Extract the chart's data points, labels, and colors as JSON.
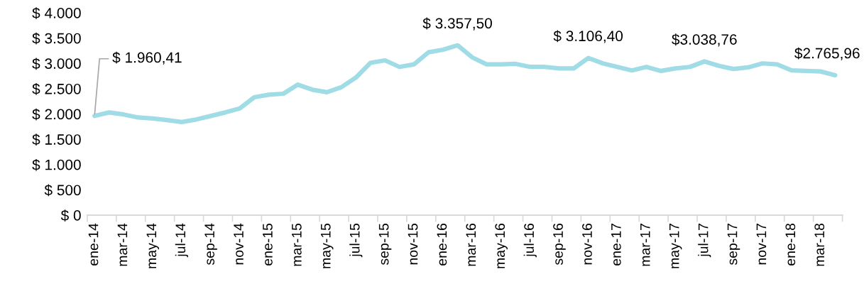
{
  "chart_data": {
    "type": "line",
    "categories": [
      "ene-14",
      null,
      "mar-14",
      null,
      "may-14",
      null,
      "jul-14",
      null,
      "sep-14",
      null,
      "nov-14",
      null,
      "ene-15",
      null,
      "mar-15",
      null,
      "may-15",
      null,
      "jul-15",
      null,
      "sep-15",
      null,
      "nov-15",
      null,
      "ene-16",
      null,
      "mar-16",
      null,
      "may-16",
      null,
      "jul-16",
      null,
      "sep-16",
      null,
      "nov-16",
      null,
      "ene-17",
      null,
      "mar-17",
      null,
      "may-17",
      null,
      "jul-17",
      null,
      "sep-17",
      null,
      "nov-17",
      null,
      "ene-18",
      null,
      "mar-18",
      null
    ],
    "series": [
      {
        "color": "#a0dce6",
        "values": [
          1960.41,
          2030,
          1990,
          1930,
          1910,
          1880,
          1840,
          1890,
          1960,
          2030,
          2110,
          2330,
          2380,
          2400,
          2580,
          2480,
          2430,
          2530,
          2720,
          3010,
          3060,
          2930,
          2980,
          3220,
          3270,
          3357.5,
          3120,
          2980,
          2980,
          2990,
          2930,
          2930,
          2900,
          2900,
          3106.4,
          3000,
          2930,
          2860,
          2930,
          2850,
          2900,
          2930,
          3038.76,
          2950,
          2890,
          2920,
          3000,
          2980,
          2860,
          2850,
          2840,
          2765.96
        ],
        "value_labels": [
          "$ 1.960,41",
          null,
          null,
          null,
          null,
          null,
          null,
          null,
          null,
          null,
          null,
          null,
          null,
          null,
          null,
          null,
          null,
          null,
          null,
          null,
          null,
          null,
          null,
          null,
          null,
          "$ 3.357,50",
          null,
          null,
          null,
          null,
          null,
          null,
          null,
          null,
          "$ 3.106,40",
          null,
          null,
          null,
          null,
          null,
          null,
          null,
          "$3.038,76",
          null,
          null,
          null,
          null,
          null,
          null,
          null,
          null,
          "$2.765,96"
        ]
      }
    ],
    "ylim": [
      0,
      4000
    ],
    "yticks": [
      {
        "value": 0,
        "label": "$ 0"
      },
      {
        "value": 500,
        "label": "$ 500"
      },
      {
        "value": 1000,
        "label": "$ 1.000"
      },
      {
        "value": 1500,
        "label": "$ 1.500"
      },
      {
        "value": 2000,
        "label": "$ 2.000"
      },
      {
        "value": 2500,
        "label": "$ 2.500"
      },
      {
        "value": 3000,
        "label": "$ 3.000"
      },
      {
        "value": 3500,
        "label": "$ 3.500"
      },
      {
        "value": 4000,
        "label": "$ 4.000"
      }
    ],
    "grid": false,
    "legend": false,
    "marker": "none",
    "line_style": "solid"
  }
}
